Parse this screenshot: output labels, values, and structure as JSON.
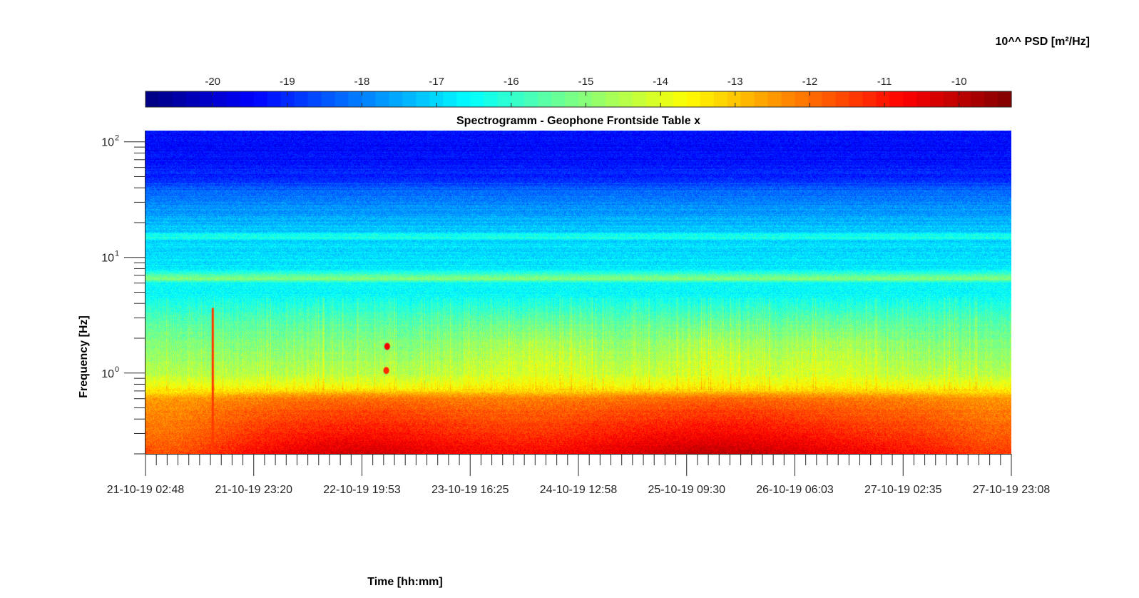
{
  "chart_data": {
    "type": "heatmap",
    "title": "Spectrogramm - Geophone Frontside Table x",
    "xlabel": "Time [hh:mm]",
    "ylabel": "Frequency [Hz]",
    "colorbar": {
      "label": "10^^ PSD [m²/Hz]",
      "tick_labels": [
        "-20",
        "-19",
        "-18",
        "-17",
        "-16",
        "-15",
        "-14",
        "-13",
        "-12",
        "-11",
        "-10"
      ],
      "range": [
        -20.9,
        -9.3
      ],
      "colormap": "jet",
      "orientation": "horizontal",
      "position": "top"
    },
    "x_tick_labels": [
      "21-10-19 02:48",
      "21-10-19 23:20",
      "22-10-19 19:53",
      "23-10-19 16:25",
      "24-10-19 12:58",
      "25-10-19 09:30",
      "26-10-19 06:03",
      "27-10-19 02:35",
      "27-10-19 23:08"
    ],
    "xlim": [
      "21-10-19 02:48",
      "27-10-19 23:08"
    ],
    "y_scale": "log",
    "ylim": [
      0.2,
      125
    ],
    "y_tick_values": [
      1,
      10,
      100
    ],
    "y_tick_labels": [
      "10",
      "10",
      "10"
    ],
    "y_tick_exponents": [
      "0",
      "1",
      "2"
    ],
    "y_profile": {
      "freq_hz": [
        0.2,
        0.3,
        0.45,
        0.6,
        0.7,
        0.8,
        1.0,
        1.5,
        2.0,
        3.0,
        4.0,
        5.0,
        6.0,
        6.5,
        8.0,
        10.0,
        14.0,
        15.0,
        17.0,
        25.0,
        35.0,
        50.0,
        70.0,
        100.0,
        125.0
      ],
      "log10_psd": [
        -11.0,
        -11.5,
        -11.9,
        -12.3,
        -13.3,
        -13.9,
        -14.5,
        -14.9,
        -15.2,
        -15.7,
        -16.2,
        -16.6,
        -16.5,
        -15.0,
        -16.8,
        -16.9,
        -17.0,
        -16.2,
        -17.2,
        -17.7,
        -18.2,
        -19.0,
        -19.3,
        -19.5,
        -19.2
      ]
    },
    "events": [
      {
        "time": "23-10-19 00:40",
        "freq_hz": 1.7,
        "log10_psd": -10.6
      },
      {
        "time": "23-10-19 00:30",
        "freq_hz": 1.05,
        "log10_psd": -11.2
      },
      {
        "time": "21-10-19 15:30",
        "freq_hz": 0.5,
        "log10_psd": -11.4
      }
    ],
    "grid": false
  }
}
